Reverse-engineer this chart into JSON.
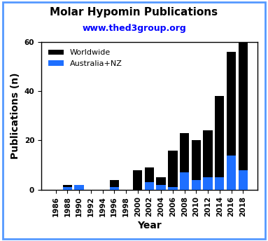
{
  "title": "Molar Hypomin Publications",
  "subtitle": "www.thed3group.org",
  "subtitle_color": "#0000FF",
  "xlabel": "Year",
  "ylabel": "Publications (n)",
  "ylim": [
    0,
    60
  ],
  "yticks": [
    0,
    20,
    40,
    60
  ],
  "years": [
    1986,
    1988,
    1990,
    1992,
    1994,
    1996,
    1998,
    2000,
    2002,
    2004,
    2006,
    2008,
    2010,
    2012,
    2014,
    2016,
    2018
  ],
  "worldwide": [
    0,
    2,
    2,
    0,
    0,
    4,
    0,
    8,
    9,
    5,
    16,
    23,
    20,
    24,
    38,
    56,
    60
  ],
  "australia_nz": [
    0,
    1,
    2,
    0,
    0,
    1,
    0,
    0,
    3,
    2,
    1,
    7,
    4,
    5,
    5,
    14,
    8
  ],
  "bar_color_worldwide": "#000000",
  "bar_color_australia": "#1E6FFF",
  "bar_width": 0.8,
  "legend_worldwide": "Worldwide",
  "legend_australia": "Australia+NZ",
  "background_color": "#FFFFFF",
  "border_color": "#5599FF",
  "border_linewidth": 2.0,
  "title_fontsize": 11,
  "subtitle_fontsize": 9,
  "label_fontsize": 10,
  "tick_fontsize": 7.5,
  "legend_fontsize": 8
}
